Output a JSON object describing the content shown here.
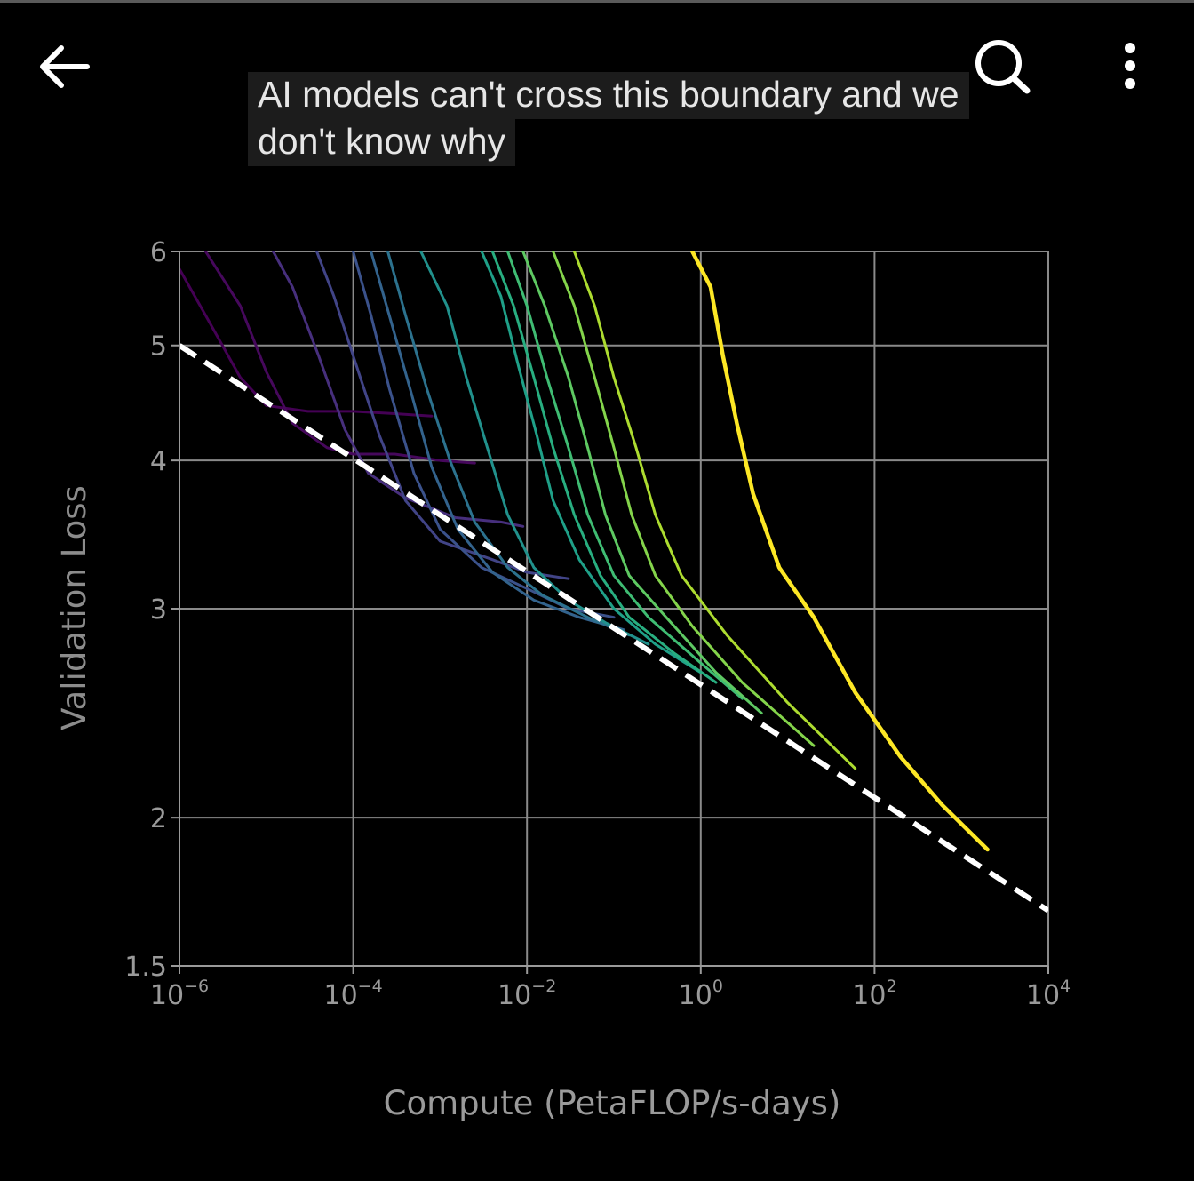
{
  "header": {
    "back_icon": "arrow-left-icon",
    "search_icon": "search-icon",
    "more_icon": "more-vertical-icon"
  },
  "caption": "AI models can't cross this boundary and we don't know why",
  "chart_data": {
    "type": "line",
    "title": "",
    "xlabel": "Compute (PetaFLOP/s-days)",
    "ylabel": "Validation Loss",
    "x_scale": "log",
    "y_scale": "log",
    "xlim": [
      1e-06,
      10000
    ],
    "ylim": [
      1.5,
      6
    ],
    "x_ticks": [
      {
        "value": 1e-06,
        "base": "10",
        "exp": "−6"
      },
      {
        "value": 0.0001,
        "base": "10",
        "exp": "−4"
      },
      {
        "value": 0.01,
        "base": "10",
        "exp": "−2"
      },
      {
        "value": 1,
        "base": "10",
        "exp": "0"
      },
      {
        "value": 100,
        "base": "10",
        "exp": "2"
      },
      {
        "value": 10000,
        "base": "10",
        "exp": "4"
      }
    ],
    "y_ticks": [
      {
        "value": 1.5,
        "label": "1.5"
      },
      {
        "value": 2,
        "label": "2"
      },
      {
        "value": 3,
        "label": "3"
      },
      {
        "value": 4,
        "label": "4"
      },
      {
        "value": 5,
        "label": "5"
      },
      {
        "value": 6,
        "label": "6"
      }
    ],
    "grid": true,
    "colormap": "viridis",
    "frontier": {
      "style": "dashed",
      "color": "#ffffff",
      "x": [
        1e-06,
        10000
      ],
      "y": [
        5.0,
        1.67
      ]
    },
    "series": [
      {
        "color": "#440154",
        "x": [
          1e-06,
          2e-06,
          5e-06,
          1e-05,
          3e-05,
          0.0001,
          0.0003,
          0.0008
        ],
        "y": [
          5.8,
          5.3,
          4.7,
          4.45,
          4.4,
          4.4,
          4.38,
          4.36
        ]
      },
      {
        "color": "#46085c",
        "x": [
          2e-06,
          5e-06,
          1e-05,
          2e-05,
          5e-05,
          0.0001,
          0.0003,
          0.001,
          0.0025
        ],
        "y": [
          6.0,
          5.4,
          4.75,
          4.3,
          4.1,
          4.05,
          4.05,
          4.0,
          3.98
        ]
      },
      {
        "color": "#472f7d",
        "x": [
          1.2e-05,
          2e-05,
          4e-05,
          8e-05,
          0.00015,
          0.0004,
          0.0015,
          0.005,
          0.009
        ],
        "y": [
          6.0,
          5.6,
          4.9,
          4.25,
          3.9,
          3.72,
          3.58,
          3.55,
          3.52
        ]
      },
      {
        "color": "#414487",
        "x": [
          3.8e-05,
          6e-05,
          0.0001,
          0.0002,
          0.0004,
          0.001,
          0.004,
          0.01,
          0.03
        ],
        "y": [
          6.0,
          5.5,
          4.9,
          4.2,
          3.7,
          3.42,
          3.3,
          3.22,
          3.18
        ]
      },
      {
        "color": "#3b528b",
        "x": [
          0.0001,
          0.00016,
          0.00026,
          0.0005,
          0.001,
          0.003,
          0.01,
          0.03,
          0.1
        ],
        "y": [
          6.0,
          5.3,
          4.6,
          3.9,
          3.5,
          3.25,
          3.12,
          3.0,
          2.95
        ]
      },
      {
        "color": "#33638d",
        "x": [
          0.00016,
          0.00026,
          0.00045,
          0.0008,
          0.0016,
          0.004,
          0.012,
          0.04,
          0.13
        ],
        "y": [
          6.0,
          5.3,
          4.6,
          3.95,
          3.5,
          3.22,
          3.05,
          2.95,
          2.88
        ]
      },
      {
        "color": "#2c728e",
        "x": [
          0.00025,
          0.0004,
          0.0007,
          0.0013,
          0.0025,
          0.006,
          0.015,
          0.05,
          0.15
        ],
        "y": [
          6.0,
          5.3,
          4.6,
          4.0,
          3.55,
          3.25,
          3.08,
          2.95,
          2.85
        ]
      },
      {
        "color": "#21918c",
        "x": [
          0.0006,
          0.0012,
          0.002,
          0.0035,
          0.006,
          0.012,
          0.03,
          0.08,
          0.25
        ],
        "y": [
          6.0,
          5.4,
          4.7,
          4.1,
          3.6,
          3.25,
          3.05,
          2.92,
          2.8
        ]
      },
      {
        "color": "#1fa088",
        "x": [
          0.003,
          0.005,
          0.008,
          0.013,
          0.02,
          0.04,
          0.1,
          0.3,
          1.0
        ],
        "y": [
          6.0,
          5.5,
          4.8,
          4.2,
          3.7,
          3.3,
          3.0,
          2.8,
          2.65
        ]
      },
      {
        "color": "#28ae80",
        "x": [
          0.004,
          0.007,
          0.012,
          0.02,
          0.035,
          0.07,
          0.15,
          0.5,
          1.5
        ],
        "y": [
          6.0,
          5.4,
          4.7,
          4.1,
          3.6,
          3.2,
          2.95,
          2.75,
          2.6
        ]
      },
      {
        "color": "#3fbc73",
        "x": [
          0.006,
          0.01,
          0.017,
          0.03,
          0.05,
          0.1,
          0.25,
          1.0,
          3.0
        ],
        "y": [
          6.0,
          5.4,
          4.7,
          4.1,
          3.6,
          3.2,
          2.95,
          2.7,
          2.52
        ]
      },
      {
        "color": "#5ec962",
        "x": [
          0.009,
          0.016,
          0.03,
          0.05,
          0.08,
          0.15,
          0.4,
          1.5,
          5.0
        ],
        "y": [
          6.0,
          5.4,
          4.7,
          4.1,
          3.6,
          3.2,
          2.95,
          2.65,
          2.45
        ]
      },
      {
        "color": "#84d44b",
        "x": [
          0.02,
          0.035,
          0.06,
          0.1,
          0.16,
          0.3,
          0.8,
          3.0,
          20.0
        ],
        "y": [
          6.0,
          5.4,
          4.7,
          4.1,
          3.6,
          3.2,
          2.9,
          2.6,
          2.3
        ]
      },
      {
        "color": "#addc30",
        "x": [
          0.035,
          0.06,
          0.1,
          0.18,
          0.3,
          0.6,
          2.0,
          10.0,
          60.0
        ],
        "y": [
          6.0,
          5.4,
          4.7,
          4.1,
          3.6,
          3.2,
          2.85,
          2.5,
          2.2
        ]
      },
      {
        "color": "#fde725",
        "x": [
          0.8,
          1.3,
          1.8,
          2.6,
          4.0,
          8.0,
          20.0,
          60.0,
          200.0,
          600.0,
          2000.0
        ],
        "y": [
          6.0,
          5.6,
          4.9,
          4.3,
          3.75,
          3.25,
          2.95,
          2.55,
          2.25,
          2.05,
          1.88
        ]
      }
    ]
  }
}
